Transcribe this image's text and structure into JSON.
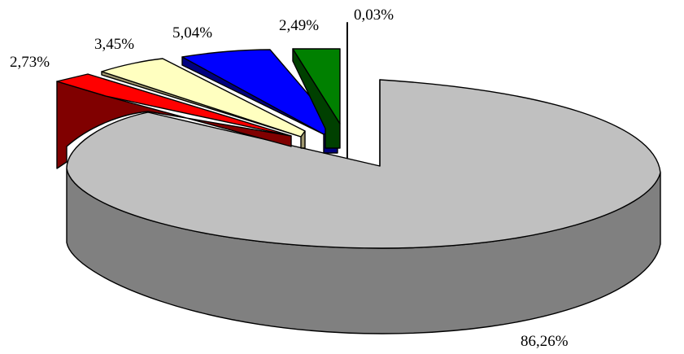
{
  "chart_data": {
    "type": "pie",
    "variant": "3d-exploded",
    "title": "",
    "legend": "none",
    "slices": [
      {
        "label": "86,26%",
        "value": 86.26,
        "top_color": "#c0c0c0",
        "side_color": "#808080"
      },
      {
        "label": "2,73%",
        "value": 2.73,
        "top_color": "#ff0000",
        "side_color": "#800000"
      },
      {
        "label": "3,45%",
        "value": 3.45,
        "top_color": "#ffffc0",
        "side_color": "#a09870"
      },
      {
        "label": "5,04%",
        "value": 5.04,
        "top_color": "#0000ff",
        "side_color": "#000080"
      },
      {
        "label": "2,49%",
        "value": 2.49,
        "top_color": "#008000",
        "side_color": "#004000"
      },
      {
        "label": "0,03%",
        "value": 0.03,
        "top_color": "#808080",
        "side_color": "#404040"
      }
    ]
  }
}
